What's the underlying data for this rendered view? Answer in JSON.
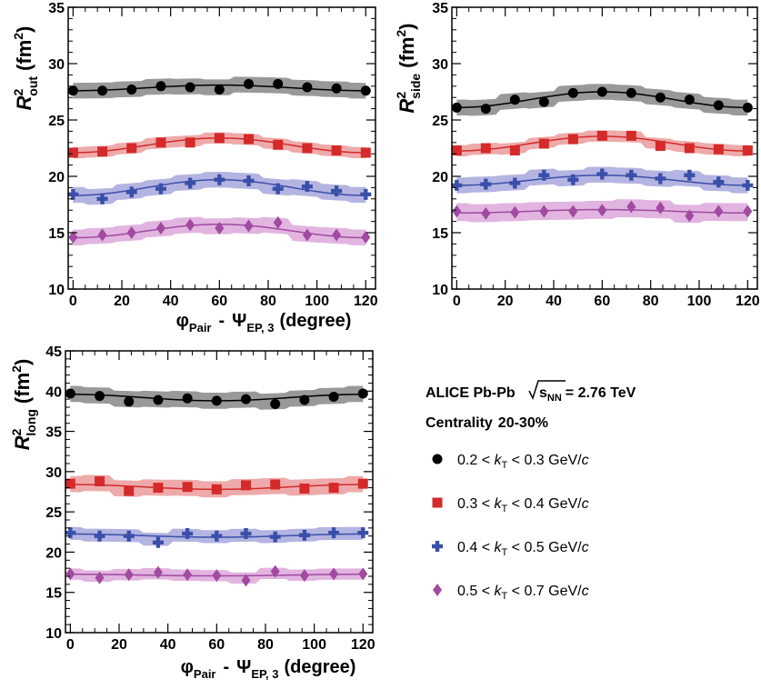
{
  "experiment": "ALICE Pb-Pb",
  "sqrt_label": "s",
  "sqrt_sub": "NN",
  "energy": "= 2.76 TeV",
  "centrality_label": "Centrality",
  "centrality_value": "20-30%",
  "x_axis": {
    "phi": "φ",
    "pair_sub": "Pair",
    "minus": "-",
    "psi": "Ψ",
    "ep_sub": "EP, 3",
    "unit": "(degree)"
  },
  "legend": [
    {
      "pre": "0.2 < ",
      "k": "k",
      "sub": "T",
      "post": " < 0.3 GeV/",
      "c": "c"
    },
    {
      "pre": "0.3 < ",
      "k": "k",
      "sub": "T",
      "post": " < 0.4 GeV/",
      "c": "c"
    },
    {
      "pre": "0.4 < ",
      "k": "k",
      "sub": "T",
      "post": " < 0.5 GeV/",
      "c": "c"
    },
    {
      "pre": "0.5 < ",
      "k": "k",
      "sub": "T",
      "post": " < 0.7 GeV/",
      "c": "c"
    }
  ],
  "colors": {
    "black": "#000000",
    "red": "#d42a2a",
    "blue": "#3a4fa8",
    "magenta": "#a04aa0",
    "band_black": "#999999",
    "band_red": "#eeaaaa",
    "band_blue": "#b4b4e2",
    "band_magenta": "#e2b4e0"
  },
  "chart_data": [
    {
      "type": "scatter",
      "id": "out",
      "ylabel_main": "R",
      "ylabel_sup": "2",
      "ylabel_sub": "out",
      "ylabel_unit_open": "(fm",
      "ylabel_unit_sup": "2",
      "ylabel_unit_close": ")",
      "xlim": [
        -2,
        124
      ],
      "ylim": [
        10,
        35
      ],
      "xticks": [
        0,
        20,
        40,
        60,
        80,
        100,
        120
      ],
      "yticks": [
        10,
        15,
        20,
        25,
        30,
        35
      ],
      "x": [
        0,
        12,
        24,
        36,
        48,
        60,
        72,
        84,
        96,
        108,
        120
      ],
      "series": [
        {
          "marker": "circle",
          "color": "black",
          "values": [
            27.6,
            27.6,
            27.7,
            28.0,
            27.9,
            27.7,
            28.2,
            28.2,
            27.9,
            27.8,
            27.6
          ],
          "fit_mean": 27.85,
          "fit_amp": -0.25,
          "band": 0.7
        },
        {
          "marker": "square",
          "color": "red",
          "values": [
            22.1,
            22.2,
            22.5,
            23.0,
            23.0,
            23.4,
            23.3,
            22.8,
            22.5,
            22.3,
            22.1
          ],
          "fit_mean": 22.75,
          "fit_amp": -0.65,
          "band": 0.5
        },
        {
          "marker": "cross",
          "color": "blue",
          "values": [
            18.4,
            18.0,
            18.6,
            18.9,
            19.4,
            19.7,
            19.6,
            18.9,
            19.1,
            18.7,
            18.4
          ],
          "fit_mean": 19.0,
          "fit_amp": -0.7,
          "band": 0.7
        },
        {
          "marker": "diamond",
          "color": "magenta",
          "values": [
            14.6,
            14.8,
            15.0,
            15.4,
            15.7,
            15.4,
            15.6,
            15.9,
            14.8,
            14.8,
            14.6
          ],
          "fit_mean": 15.15,
          "fit_amp": -0.6,
          "band": 0.7
        }
      ]
    },
    {
      "type": "scatter",
      "id": "side",
      "ylabel_main": "R",
      "ylabel_sup": "2",
      "ylabel_sub": "side",
      "ylabel_unit_open": "(fm",
      "ylabel_unit_sup": "2",
      "ylabel_unit_close": ")",
      "xlim": [
        -2,
        124
      ],
      "ylim": [
        10,
        35
      ],
      "xticks": [
        0,
        20,
        40,
        60,
        80,
        100,
        120
      ],
      "yticks": [
        10,
        15,
        20,
        25,
        30,
        35
      ],
      "x": [
        0,
        12,
        24,
        36,
        48,
        60,
        72,
        84,
        96,
        108,
        120
      ],
      "series": [
        {
          "marker": "circle",
          "color": "black",
          "values": [
            26.1,
            26.0,
            26.8,
            26.6,
            27.4,
            27.5,
            27.4,
            27.0,
            26.8,
            26.3,
            26.1
          ],
          "fit_mean": 26.8,
          "fit_amp": -0.7,
          "band": 0.7
        },
        {
          "marker": "square",
          "color": "red",
          "values": [
            22.3,
            22.5,
            22.3,
            22.9,
            23.3,
            23.6,
            23.6,
            22.7,
            22.5,
            22.4,
            22.3
          ],
          "fit_mean": 22.9,
          "fit_amp": -0.65,
          "band": 0.5
        },
        {
          "marker": "cross",
          "color": "blue",
          "values": [
            19.2,
            19.3,
            19.4,
            20.1,
            19.7,
            20.2,
            20.1,
            19.8,
            20.1,
            19.5,
            19.2
          ],
          "fit_mean": 19.65,
          "fit_amp": -0.45,
          "band": 0.7
        },
        {
          "marker": "diamond",
          "color": "magenta",
          "values": [
            16.9,
            16.7,
            16.8,
            16.9,
            16.9,
            17.0,
            17.3,
            17.2,
            16.5,
            16.9,
            16.9
          ],
          "fit_mean": 16.9,
          "fit_amp": -0.15,
          "band": 0.8
        }
      ]
    },
    {
      "type": "scatter",
      "id": "long",
      "ylabel_main": "R",
      "ylabel_sup": "2",
      "ylabel_sub": "long",
      "ylabel_unit_open": "(fm",
      "ylabel_unit_sup": "2",
      "ylabel_unit_close": ")",
      "xlim": [
        -2,
        124
      ],
      "ylim": [
        10,
        45
      ],
      "xticks": [
        0,
        20,
        40,
        60,
        80,
        100,
        120
      ],
      "yticks": [
        10,
        15,
        20,
        25,
        30,
        35,
        40,
        45
      ],
      "x": [
        0,
        12,
        24,
        36,
        48,
        60,
        72,
        84,
        96,
        108,
        120
      ],
      "series": [
        {
          "marker": "circle",
          "color": "black",
          "values": [
            39.7,
            39.4,
            38.7,
            38.9,
            39.1,
            38.8,
            39.0,
            38.4,
            38.9,
            39.3,
            39.7
          ],
          "fit_mean": 39.2,
          "fit_amp": 0.4,
          "band": 1.0
        },
        {
          "marker": "square",
          "color": "red",
          "values": [
            28.5,
            28.8,
            27.6,
            28.0,
            28.1,
            27.8,
            28.3,
            28.4,
            27.9,
            28.0,
            28.5
          ],
          "fit_mean": 28.1,
          "fit_amp": 0.3,
          "band": 1.0
        },
        {
          "marker": "cross",
          "color": "blue",
          "values": [
            22.4,
            22.0,
            22.0,
            21.2,
            22.3,
            22.0,
            22.3,
            21.9,
            22.1,
            22.4,
            22.4
          ],
          "fit_mean": 22.05,
          "fit_amp": 0.2,
          "band": 0.8
        },
        {
          "marker": "diamond",
          "color": "magenta",
          "values": [
            17.3,
            16.8,
            17.2,
            17.5,
            17.2,
            17.1,
            16.5,
            17.6,
            17.1,
            17.3,
            17.3
          ],
          "fit_mean": 17.15,
          "fit_amp": 0.1,
          "band": 0.7
        }
      ]
    }
  ]
}
